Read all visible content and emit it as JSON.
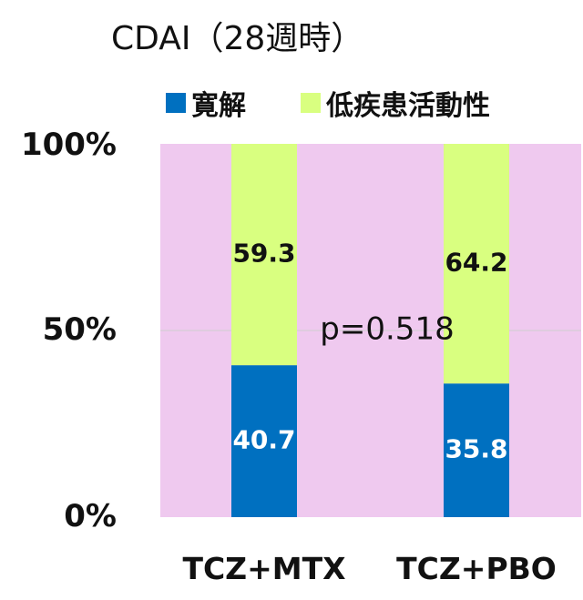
{
  "chart_data": {
    "type": "bar",
    "stacked": true,
    "title": "CDAI（28週時）",
    "categories": [
      "TCZ+MTX",
      "TCZ+PBO"
    ],
    "series": [
      {
        "name": "寛解",
        "values": [
          40.7,
          35.8
        ],
        "color": "#0070c0",
        "label_color": "#ffffff"
      },
      {
        "name": "低疾患活動性",
        "values": [
          59.3,
          64.2
        ],
        "color": "#d9ff80",
        "label_color": "#111111"
      }
    ],
    "yticks": [
      "0%",
      "50%",
      "100%"
    ],
    "ylim": [
      0,
      100
    ],
    "legend": "top",
    "grid": true,
    "plot_background": "#efc9ef",
    "annotation": "p=0.518"
  }
}
